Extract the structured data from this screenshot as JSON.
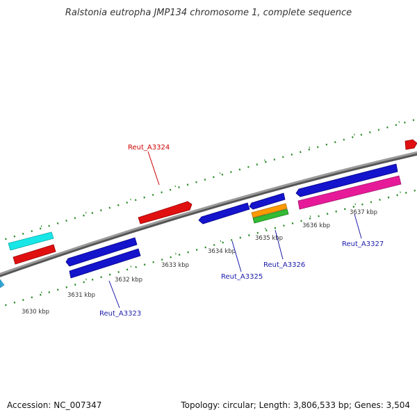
{
  "title": "Ralstonia eutropha JMP134 chromosome 1, complete sequence",
  "footer": {
    "accession": "Accession: NC_007347",
    "summary": "Topology: circular; Length: 3,806,533 bp; Genes: 3,504"
  },
  "scale_labels": [
    "3630 kbp",
    "3631 kbp",
    "3632 kbp",
    "3633 kbp",
    "3634 kbp",
    "3635 kbp",
    "3636 kbp",
    "3637 kbp"
  ],
  "gene_labels": [
    {
      "text": "Reut_A3324",
      "color": "#cc0000"
    },
    {
      "text": "Reut_A3323",
      "color": "#1a1aaa"
    },
    {
      "text": "Reut_A3325",
      "color": "#1a1aaa"
    },
    {
      "text": "Reut_A3326",
      "color": "#1a1aaa"
    },
    {
      "text": "Reut_A3327",
      "color": "#1a1aaa"
    }
  ],
  "colors": {
    "backbone": "#888888",
    "tick": "#2a8a2a",
    "blue_gene": "#1414cc",
    "red_gene": "#e01010",
    "cyan_gene": "#19e6e6",
    "pink_gene": "#e61a99",
    "orange_gene": "#ff9900",
    "green_gene": "#33bb33"
  }
}
